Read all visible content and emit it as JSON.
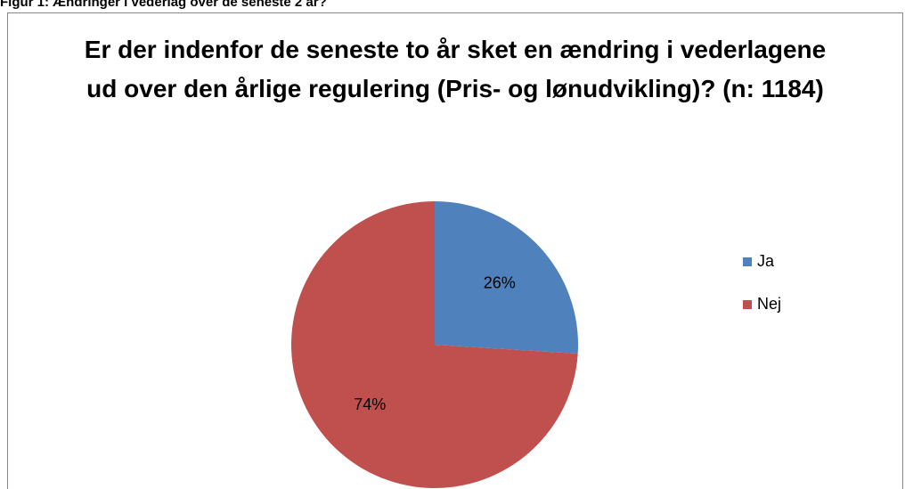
{
  "figure_caption": "Figur 1: Ændringer i vederlag over de seneste 2 år?",
  "chart_data": {
    "type": "pie",
    "title": "Er der indenfor de seneste to år sket en ændring i vederlagene ud over den årlige regulering (Pris- og lønudvikling)? (n: 1184)",
    "categories": [
      "Ja",
      "Nej"
    ],
    "values": [
      26,
      74
    ],
    "value_labels": [
      "26%",
      "74%"
    ],
    "colors": [
      "#4f81bd",
      "#c0504d"
    ],
    "legend": "right"
  }
}
